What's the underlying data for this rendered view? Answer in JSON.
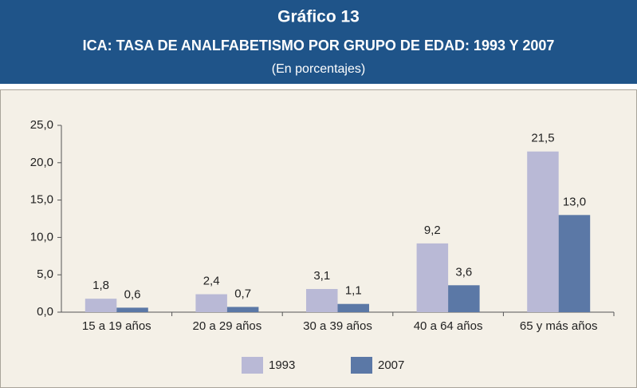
{
  "chart_data": {
    "type": "bar",
    "title": "Gráfico 13",
    "subtitle": "ICA: TASA DE ANALFABETISMO POR GRUPO DE EDAD: 1993 Y 2007",
    "note": "(En porcentajes)",
    "categories": [
      "15 a 19 años",
      "20 a 29 años",
      "30 a 39 años",
      "40 a 64 años",
      "65 y más años"
    ],
    "series": [
      {
        "name": "1993",
        "color": "#b9b9d6",
        "values": [
          1.8,
          2.4,
          3.1,
          9.2,
          21.5
        ],
        "value_labels": [
          "1,8",
          "2,4",
          "3,1",
          "9,2",
          "21,5"
        ]
      },
      {
        "name": "2007",
        "color": "#5b78a6",
        "values": [
          0.6,
          0.7,
          1.1,
          3.6,
          13.0
        ],
        "value_labels": [
          "0,6",
          "0,7",
          "1,1",
          "3,6",
          "13,0"
        ]
      }
    ],
    "ylim": [
      0,
      25
    ],
    "yticks": [
      {
        "value": 0,
        "label": "0,0"
      },
      {
        "value": 5,
        "label": "5,0"
      },
      {
        "value": 10,
        "label": "10,0"
      },
      {
        "value": 15,
        "label": "15,0"
      },
      {
        "value": 20,
        "label": "20,0"
      },
      {
        "value": 25,
        "label": "25,0"
      }
    ],
    "legend": "bottom"
  }
}
